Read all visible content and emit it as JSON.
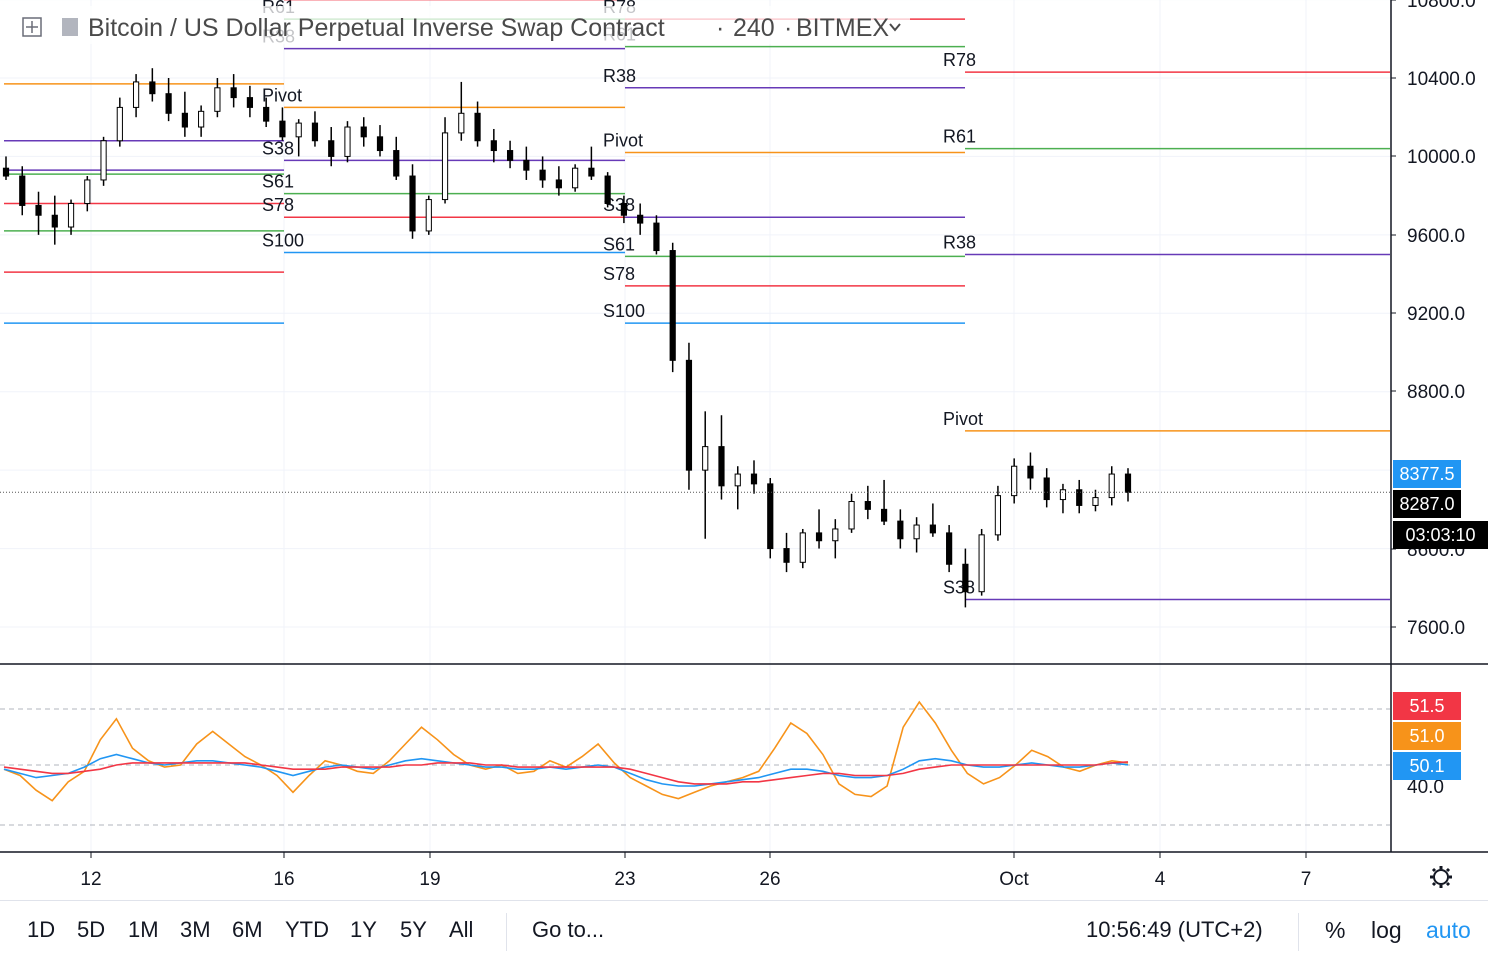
{
  "header": {
    "title": "Bitcoin / US Dollar Perpetual Inverse Swap Contract",
    "interval": "240",
    "exchange": "BITMEX",
    "separator": "·"
  },
  "price_axis": {
    "ticks": [
      "10800.0",
      "10400.0",
      "10000.0",
      "9600.0",
      "9200.0",
      "8800.0",
      "8600.0",
      "7600.0"
    ],
    "current_price": "8287.0",
    "countdown": "03:03:10",
    "marker_price": "8377.5",
    "marker_color": "#2196f3",
    "current_color": "#000000"
  },
  "osc_axis": {
    "tick": "40.0",
    "badges": [
      {
        "value": "51.5",
        "color": "#f23645"
      },
      {
        "value": "51.0",
        "color": "#f7931a"
      },
      {
        "value": "50.1",
        "color": "#2196f3"
      }
    ]
  },
  "time_axis": {
    "ticks": [
      "12",
      "16",
      "19",
      "23",
      "26",
      "Oct",
      "4",
      "7"
    ]
  },
  "bottom_bar": {
    "ranges": [
      "1D",
      "5D",
      "1M",
      "3M",
      "6M",
      "YTD",
      "1Y",
      "5Y",
      "All"
    ],
    "goto": "Go to...",
    "clock": "10:56:49 (UTC+2)",
    "percent": "%",
    "log": "log",
    "auto": "auto",
    "auto_color": "#2196f3"
  },
  "icons": [
    "expand-icon",
    "flag-icon",
    "chevron-down-icon",
    "gear-icon"
  ],
  "chart_data": [
    {
      "type": "candlestick",
      "interval": "240",
      "x_dates": [
        "12",
        "16",
        "19",
        "23",
        "26",
        "Oct",
        "4",
        "7"
      ],
      "ylim": [
        7400,
        10850
      ],
      "candles": [
        [
          9940,
          10000,
          9880,
          9900
        ],
        [
          9900,
          9950,
          9700,
          9750
        ],
        [
          9750,
          9820,
          9600,
          9700
        ],
        [
          9700,
          9800,
          9550,
          9640
        ],
        [
          9640,
          9780,
          9600,
          9760
        ],
        [
          9760,
          9900,
          9720,
          9880
        ],
        [
          9880,
          10100,
          9850,
          10080
        ],
        [
          10080,
          10300,
          10050,
          10250
        ],
        [
          10250,
          10420,
          10200,
          10380
        ],
        [
          10380,
          10450,
          10280,
          10320
        ],
        [
          10320,
          10400,
          10180,
          10220
        ],
        [
          10220,
          10330,
          10100,
          10150
        ],
        [
          10150,
          10260,
          10100,
          10230
        ],
        [
          10230,
          10400,
          10200,
          10350
        ],
        [
          10350,
          10420,
          10250,
          10300
        ],
        [
          10300,
          10360,
          10200,
          10250
        ],
        [
          10250,
          10300,
          10150,
          10180
        ],
        [
          10180,
          10250,
          10080,
          10100
        ],
        [
          10100,
          10190,
          10000,
          10170
        ],
        [
          10170,
          10230,
          10050,
          10080
        ],
        [
          10080,
          10150,
          9950,
          10000
        ],
        [
          10000,
          10180,
          9970,
          10150
        ],
        [
          10150,
          10200,
          10050,
          10100
        ],
        [
          10100,
          10160,
          10000,
          10030
        ],
        [
          10030,
          10100,
          9880,
          9900
        ],
        [
          9900,
          9960,
          9580,
          9620
        ],
        [
          9620,
          9800,
          9600,
          9780
        ],
        [
          9780,
          10200,
          9760,
          10120
        ],
        [
          10120,
          10380,
          10080,
          10220
        ],
        [
          10220,
          10280,
          10050,
          10080
        ],
        [
          10080,
          10140,
          9970,
          10030
        ],
        [
          10030,
          10080,
          9940,
          9980
        ],
        [
          9980,
          10050,
          9880,
          9930
        ],
        [
          9930,
          10000,
          9840,
          9880
        ],
        [
          9880,
          9950,
          9800,
          9840
        ],
        [
          9840,
          9960,
          9820,
          9940
        ],
        [
          9940,
          10050,
          9880,
          9900
        ],
        [
          9900,
          9920,
          9740,
          9760
        ],
        [
          9760,
          9800,
          9660,
          9700
        ],
        [
          9700,
          9760,
          9600,
          9660
        ],
        [
          9660,
          9700,
          9500,
          9520
        ],
        [
          9520,
          9560,
          8900,
          8960
        ],
        [
          8960,
          9050,
          8300,
          8400
        ],
        [
          8400,
          8700,
          8050,
          8520
        ],
        [
          8520,
          8680,
          8250,
          8320
        ],
        [
          8320,
          8420,
          8200,
          8380
        ],
        [
          8380,
          8450,
          8280,
          8330
        ],
        [
          8330,
          8360,
          7950,
          8000
        ],
        [
          8000,
          8080,
          7880,
          7930
        ],
        [
          7930,
          8100,
          7900,
          8080
        ],
        [
          8080,
          8200,
          8000,
          8040
        ],
        [
          8040,
          8150,
          7950,
          8100
        ],
        [
          8100,
          8280,
          8080,
          8240
        ],
        [
          8240,
          8320,
          8150,
          8200
        ],
        [
          8200,
          8350,
          8120,
          8140
        ],
        [
          8140,
          8200,
          8000,
          8050
        ],
        [
          8050,
          8160,
          7980,
          8120
        ],
        [
          8120,
          8230,
          8060,
          8080
        ],
        [
          8080,
          8120,
          7880,
          7920
        ],
        [
          7920,
          8000,
          7700,
          7780
        ],
        [
          7780,
          8100,
          7760,
          8070
        ],
        [
          8070,
          8320,
          8040,
          8270
        ],
        [
          8270,
          8460,
          8230,
          8420
        ],
        [
          8420,
          8490,
          8300,
          8360
        ],
        [
          8360,
          8410,
          8210,
          8250
        ],
        [
          8250,
          8330,
          8180,
          8300
        ],
        [
          8300,
          8350,
          8180,
          8220
        ],
        [
          8220,
          8300,
          8190,
          8260
        ],
        [
          8260,
          8420,
          8220,
          8380
        ],
        [
          8380,
          8410,
          8240,
          8287
        ]
      ],
      "pivot_levels": [
        {
          "period": 1,
          "Pivot": 10370,
          "R38": 10080,
          "R61": 9910,
          "R78": 9760,
          "S38": 9930,
          "S61": 9620,
          "S78": 9410,
          "S100": 9150
        },
        {
          "period": 2,
          "Pivot": 10250,
          "R38": 10550,
          "R61": 10700,
          "R78": 10800,
          "S38": 9980,
          "S61": 9810,
          "S78": 9690,
          "S100": 9510
        },
        {
          "period": 3,
          "Pivot": 10020,
          "R38": 10350,
          "R61": 10560,
          "R78": 10700,
          "S38": 9690,
          "S61": 9490,
          "S78": 9340,
          "S100": 9150
        },
        {
          "period": 4,
          "Pivot": 8600,
          "R38": 9500,
          "R61": 10040,
          "R78": 10430,
          "S38": 7740
        }
      ],
      "oscillator": {
        "tick": "40.0",
        "series": [
          {
            "color": "#f7931a",
            "last": 51.0,
            "values": [
              48,
              45,
              38,
              33,
              42,
              47,
              62,
              72,
              58,
              52,
              49,
              50,
              60,
              66,
              60,
              54,
              50,
              45,
              37,
              45,
              52,
              50,
              47,
              46,
              52,
              60,
              68,
              62,
              55,
              50,
              48,
              50,
              46,
              47,
              52,
              49,
              54,
              60,
              51,
              44,
              40,
              36,
              34,
              37,
              40,
              42,
              44,
              47,
              58,
              70,
              65,
              55,
              41,
              36,
              35,
              40,
              68,
              80,
              70,
              57,
              46,
              41,
              44,
              50,
              57,
              54,
              49,
              47,
              50,
              52,
              51
            ]
          },
          {
            "color": "#2196f3",
            "last": 50.1,
            "values": [
              48,
              46,
              44,
              45,
              46,
              49,
              53,
              55,
              53,
              51,
              50,
              51,
              52,
              52,
              51,
              50,
              49,
              47,
              45,
              47,
              49,
              50,
              49,
              48,
              50,
              52,
              53,
              52,
              51,
              50,
              49,
              49,
              48,
              48,
              49,
              48,
              49,
              50,
              49,
              46,
              43,
              41,
              40,
              40,
              41,
              42,
              43,
              44,
              46,
              48,
              48,
              47,
              45,
              44,
              44,
              45,
              48,
              52,
              53,
              52,
              50,
              49,
              49,
              50,
              51,
              50,
              49,
              49,
              50,
              51,
              50.1
            ]
          },
          {
            "color": "#f23645",
            "last": 51.5,
            "values": [
              49,
              48,
              47,
              46,
              46,
              47,
              48,
              50,
              51,
              51,
              51,
              51,
              51,
              51,
              51,
              51,
              50,
              49,
              48,
              48,
              48,
              49,
              49,
              49,
              49,
              50,
              50,
              51,
              51,
              51,
              50,
              50,
              49,
              49,
              49,
              49,
              49,
              49,
              49,
              48,
              46,
              44,
              42,
              41,
              41,
              41,
              42,
              42,
              43,
              44,
              45,
              46,
              46,
              45,
              45,
              45,
              46,
              48,
              49,
              50,
              50,
              50,
              50,
              50,
              50,
              50,
              50,
              50,
              50,
              51,
              51.5
            ]
          }
        ]
      }
    }
  ]
}
